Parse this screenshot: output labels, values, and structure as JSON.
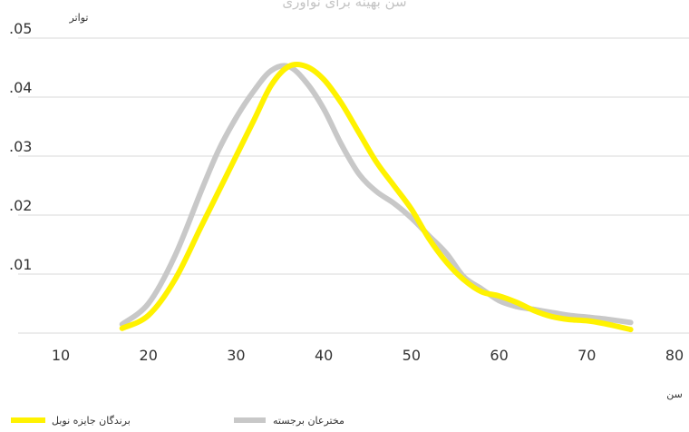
{
  "chart_data": {
    "type": "line",
    "title": "سن بهینه برای نوآوری",
    "xlabel": "سن",
    "ylabel": "تواتر",
    "xlim": [
      10,
      80
    ],
    "ylim": [
      0,
      0.05
    ],
    "x_ticks": [
      "10",
      "20",
      "30",
      "40",
      "50",
      "60",
      "70",
      "80"
    ],
    "y_ticks": [
      ".01",
      ".02",
      ".03",
      ".04",
      ".05"
    ],
    "y_tick_values": [
      0.01,
      0.02,
      0.03,
      0.04,
      0.05
    ],
    "x_tick_values": [
      10,
      20,
      30,
      40,
      50,
      60,
      70,
      80
    ],
    "grid": true,
    "legend_position": "bottom",
    "series": [
      {
        "name": "برندگان جایزه نوبل",
        "color": "#fff200",
        "x": [
          17,
          20,
          23,
          26,
          29,
          32,
          34,
          36,
          38,
          40,
          42,
          44,
          46,
          48,
          50,
          52,
          54,
          56,
          58,
          60,
          62,
          64,
          66,
          68,
          70,
          72,
          75
        ],
        "y": [
          0.0008,
          0.003,
          0.009,
          0.018,
          0.027,
          0.036,
          0.042,
          0.0452,
          0.0452,
          0.043,
          0.039,
          0.034,
          0.029,
          0.025,
          0.021,
          0.016,
          0.012,
          0.009,
          0.007,
          0.0063,
          0.0052,
          0.0038,
          0.0028,
          0.0023,
          0.0021,
          0.0016,
          0.0006
        ]
      },
      {
        "name": "مخترعان برجسته",
        "color": "#c8c8c8",
        "x": [
          17,
          20,
          23,
          26,
          28,
          30,
          32,
          34,
          36,
          38,
          40,
          42,
          44,
          46,
          48,
          50,
          52,
          54,
          56,
          58,
          60,
          62,
          64,
          66,
          68,
          70,
          72,
          75
        ],
        "y": [
          0.0015,
          0.005,
          0.013,
          0.024,
          0.031,
          0.0365,
          0.041,
          0.0445,
          0.0452,
          0.0425,
          0.038,
          0.032,
          0.027,
          0.024,
          0.022,
          0.0195,
          0.0165,
          0.0135,
          0.0095,
          0.0075,
          0.0055,
          0.0045,
          0.004,
          0.0035,
          0.003,
          0.0027,
          0.0024,
          0.0018
        ]
      }
    ]
  }
}
